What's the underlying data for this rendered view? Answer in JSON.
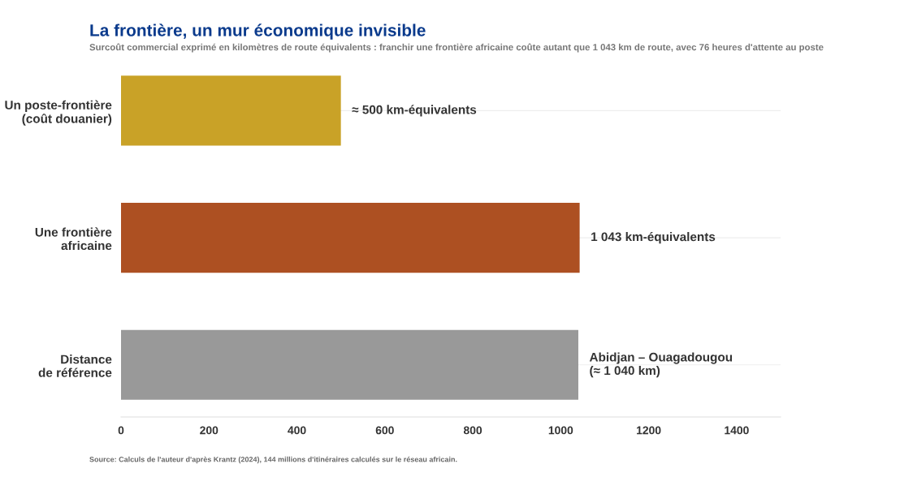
{
  "chart_data": {
    "type": "bar",
    "orientation": "horizontal",
    "title": "La frontière, un mur économique invisible",
    "subtitle": "Surcoût commercial exprimé en kilomètres de route équivalents : franchir une frontière africaine coûte autant que 1 043 km de route, avec 76 heures d'attente au poste",
    "categories": [
      "Un poste-frontière\n(coût douanier)",
      "Une frontière\nafricaine",
      "Distance\nde référence"
    ],
    "values": [
      500,
      1043,
      1040
    ],
    "colors": [
      "#c9a227",
      "#ad5022",
      "#999999"
    ],
    "value_labels": [
      "≈ 500 km-équivalents",
      "1 043 km-équivalents",
      "Abidjan – Ouagadougou\n(≈ 1 040 km)"
    ],
    "xlim": [
      0,
      1500
    ],
    "xticks": [
      0,
      200,
      400,
      600,
      800,
      1000,
      1200,
      1400
    ],
    "grid": "y",
    "annotations": [
      "Source: Calculs de l'auteur d'après Krantz (2024), 144 millions d'itinéraires calculés sur le réseau africain."
    ]
  }
}
